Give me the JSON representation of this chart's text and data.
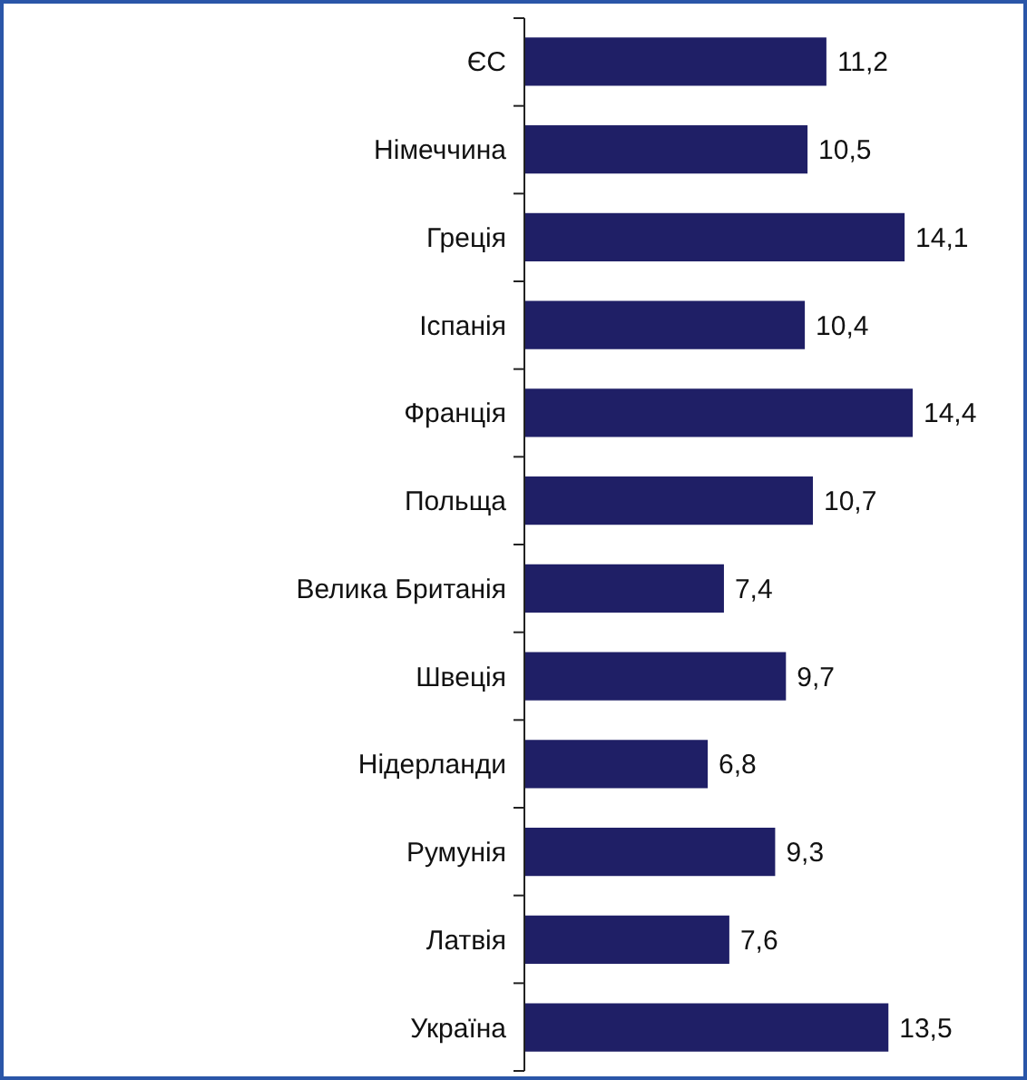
{
  "chart_data": {
    "type": "bar",
    "orientation": "horizontal",
    "categories": [
      "ЄС",
      "Німеччина",
      "Греція",
      "Іспанія",
      "Франція",
      "Польща",
      "Велика Британія",
      "Швеція",
      "Нідерланди",
      "Румунія",
      "Латвія",
      "Україна"
    ],
    "values": [
      11.2,
      10.5,
      14.1,
      10.4,
      14.4,
      10.7,
      7.4,
      9.7,
      6.8,
      9.3,
      7.6,
      13.5
    ],
    "value_labels": [
      "11,2",
      "10,5",
      "14,1",
      "10,4",
      "14,4",
      "10,7",
      "7,4",
      "9,7",
      "6,8",
      "9,3",
      "7,6",
      "13,5"
    ],
    "color": "#1f1f66",
    "tick_labels": "y"
  }
}
